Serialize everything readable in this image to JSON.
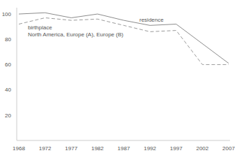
{
  "chart_data": {
    "type": "line",
    "annotation": "North America, Europe (A), Europe (B)",
    "categories": [
      "1968",
      "1972",
      "1977",
      "1982",
      "1987",
      "1992",
      "1997",
      "2002",
      "2007"
    ],
    "series": [
      {
        "name": "residence",
        "color": "#8c8c8c",
        "line_style": "solid",
        "values": [
          100,
          101,
          97,
          100,
          95,
          91,
          92,
          null,
          61
        ]
      },
      {
        "name": "birthplace",
        "color": "#9a9a9a",
        "line_style": "dashed",
        "values": [
          92,
          97,
          95,
          96,
          91,
          86,
          87,
          60,
          60
        ]
      }
    ],
    "ylim": [
      0,
      105
    ],
    "yticks": [
      20,
      40,
      60,
      80,
      100
    ],
    "grid": false
  }
}
